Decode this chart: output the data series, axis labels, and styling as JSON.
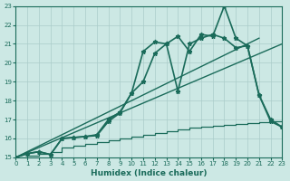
{
  "xlabel": "Humidex (Indice chaleur)",
  "xlim": [
    0,
    23
  ],
  "ylim": [
    15,
    23
  ],
  "xticks": [
    0,
    1,
    2,
    3,
    4,
    5,
    6,
    7,
    8,
    9,
    10,
    11,
    12,
    13,
    14,
    15,
    16,
    17,
    18,
    19,
    20,
    21,
    22,
    23
  ],
  "yticks": [
    15,
    16,
    17,
    18,
    19,
    20,
    21,
    22,
    23
  ],
  "background_color": "#cce8e4",
  "line_color": "#1a6b5a",
  "grid_color": "#aaccca",
  "curve1_x": [
    0,
    1,
    2,
    3,
    4,
    5,
    6,
    7,
    8,
    9,
    10,
    11,
    12,
    13,
    14,
    15,
    16,
    17,
    18,
    19,
    20,
    21,
    22,
    23
  ],
  "curve1_y": [
    15.0,
    15.2,
    15.3,
    15.15,
    16.0,
    16.05,
    16.1,
    16.15,
    16.9,
    17.35,
    18.4,
    20.6,
    21.1,
    21.0,
    21.4,
    20.6,
    21.5,
    21.4,
    23.0,
    21.3,
    20.9,
    18.3,
    17.0,
    16.6
  ],
  "curve2_x": [
    0,
    1,
    2,
    3,
    4,
    5,
    6,
    7,
    8,
    9,
    10,
    11,
    12,
    13,
    14,
    15,
    16,
    17,
    18,
    19,
    20,
    21,
    22,
    23
  ],
  "curve2_y": [
    15.0,
    15.2,
    15.3,
    15.15,
    16.0,
    16.05,
    16.1,
    16.2,
    17.0,
    17.4,
    18.4,
    19.0,
    20.5,
    21.0,
    18.5,
    21.0,
    21.3,
    21.5,
    21.3,
    20.8,
    20.9,
    18.3,
    16.9,
    16.6
  ],
  "line1_x": [
    0,
    21
  ],
  "line1_y": [
    15.0,
    21.3
  ],
  "line2_x": [
    0,
    23
  ],
  "line2_y": [
    15.0,
    21.0
  ],
  "stair_x": [
    0,
    1,
    2,
    3,
    4,
    5,
    6,
    7,
    8,
    9,
    10,
    11,
    12,
    13,
    14,
    15,
    16,
    17,
    18,
    19,
    20,
    21,
    22,
    23
  ],
  "stair_y": [
    15.0,
    15.1,
    15.2,
    15.3,
    15.5,
    15.6,
    15.7,
    15.8,
    15.9,
    16.0,
    16.1,
    16.2,
    16.3,
    16.4,
    16.5,
    16.55,
    16.6,
    16.65,
    16.7,
    16.75,
    16.8,
    16.85,
    16.9,
    16.9
  ]
}
